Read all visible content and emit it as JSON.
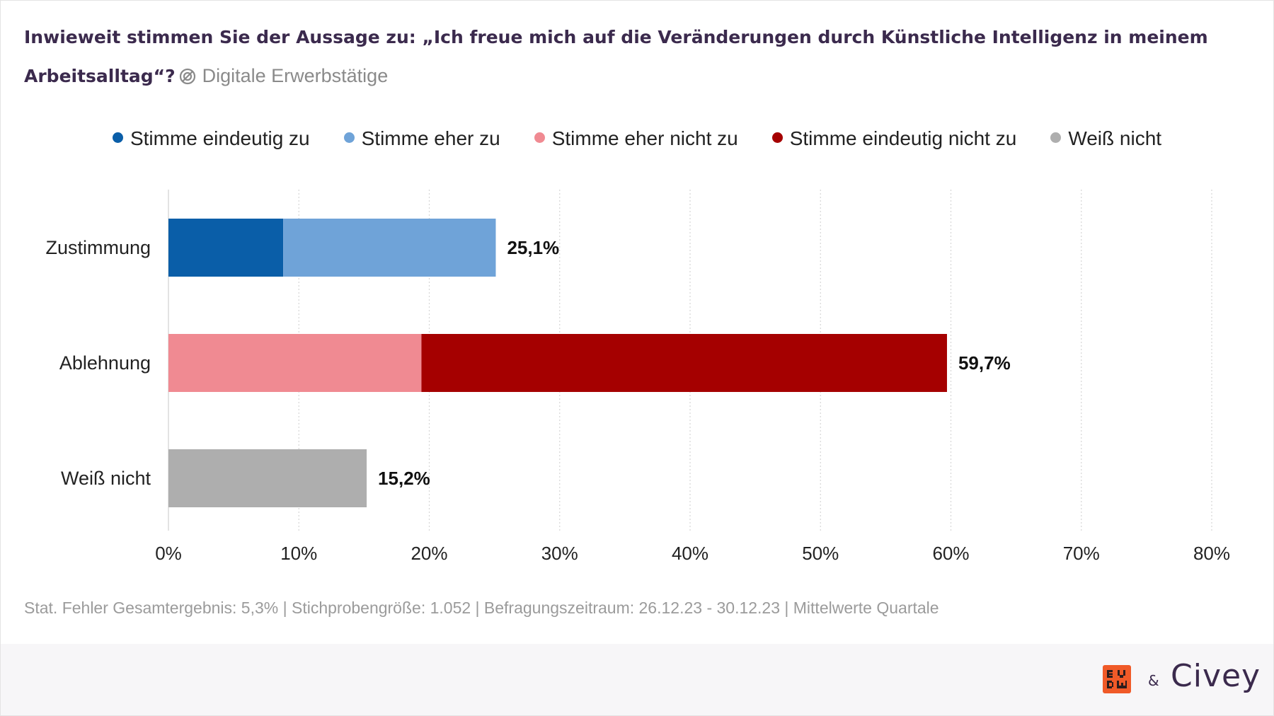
{
  "header": {
    "title": "Inwieweit stimmen Sie der Aussage zu: „Ich freue mich auf die Veränderungen durch Künstliche Intelligenz in meinem Arbeitsalltag“?",
    "segment_icon": "segment-filter-icon",
    "segment": "Digitale Erwerbstätige"
  },
  "legend": [
    {
      "label": "Stimme eindeutig zu",
      "color": "#0a5ea8"
    },
    {
      "label": "Stimme eher zu",
      "color": "#6fa3d8"
    },
    {
      "label": "Stimme eher nicht zu",
      "color": "#f08a92"
    },
    {
      "label": "Stimme eindeutig nicht zu",
      "color": "#a50000"
    },
    {
      "label": "Weiß nicht",
      "color": "#aeaeae"
    }
  ],
  "chart_data": {
    "type": "bar",
    "orientation": "horizontal",
    "stacked": true,
    "categories": [
      "Zustimmung",
      "Ablehnung",
      "Weiß nicht"
    ],
    "series": [
      {
        "name": "Stimme eindeutig zu",
        "color": "#0a5ea8",
        "values": [
          8.8,
          0,
          0
        ]
      },
      {
        "name": "Stimme eher zu",
        "color": "#6fa3d8",
        "values": [
          16.3,
          0,
          0
        ]
      },
      {
        "name": "Stimme eher nicht zu",
        "color": "#f08a92",
        "values": [
          0,
          19.4,
          0
        ]
      },
      {
        "name": "Stimme eindeutig nicht zu",
        "color": "#a50000",
        "values": [
          0,
          40.3,
          0
        ]
      },
      {
        "name": "Weiß nicht",
        "color": "#aeaeae",
        "values": [
          0,
          0,
          15.2
        ]
      }
    ],
    "totals": [
      "25,1%",
      "59,7%",
      "15,2%"
    ],
    "xlim": [
      0,
      80
    ],
    "xticks": [
      0,
      10,
      20,
      30,
      40,
      50,
      60,
      70,
      80
    ],
    "xtick_labels": [
      "0%",
      "10%",
      "20%",
      "30%",
      "40%",
      "50%",
      "60%",
      "70%",
      "80%"
    ],
    "grid": true,
    "legend_position": "top"
  },
  "footnote": "Stat. Fehler Gesamtergebnis: 5,3% | Stichprobengröße: 1.052 | Befragungszeitraum: 26.12.23 - 30.12.23 | Mittelwerte Quartale",
  "branding": {
    "partner_logo": "BVDW",
    "ampersand": "&",
    "civey": "Civey",
    "partner_color": "#f05a28"
  }
}
